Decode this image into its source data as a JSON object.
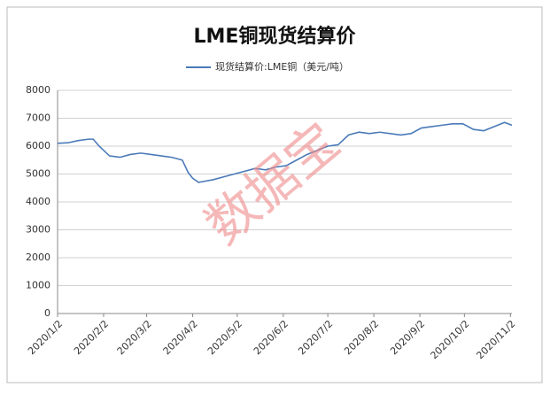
{
  "chart_data": {
    "type": "line",
    "title": "LME铜现货结算价",
    "watermark": "数据宝",
    "x": [
      0,
      7,
      14,
      21,
      24,
      28,
      35,
      42,
      49,
      56,
      63,
      70,
      77,
      84,
      88,
      91,
      95,
      100,
      105,
      112,
      119,
      126,
      133,
      140,
      147,
      154,
      161,
      168,
      175,
      182,
      189,
      196,
      203,
      210,
      217,
      224,
      231,
      238,
      245,
      252,
      259,
      266,
      273,
      280,
      287,
      294,
      301,
      306
    ],
    "series": [
      {
        "name": "现货结算价:LME铜（美元/吨）",
        "color": "#4a7ab8",
        "values": [
          6100,
          6120,
          6200,
          6250,
          6250,
          6000,
          5650,
          5600,
          5700,
          5750,
          5700,
          5650,
          5600,
          5500,
          5050,
          4850,
          4700,
          4750,
          4800,
          4900,
          5000,
          5100,
          5200,
          5150,
          5250,
          5300,
          5500,
          5700,
          5850,
          6000,
          6050,
          6400,
          6500,
          6450,
          6500,
          6450,
          6400,
          6450,
          6650,
          6700,
          6750,
          6800,
          6800,
          6600,
          6550,
          6700,
          6850,
          6750
        ]
      }
    ],
    "xlim": [
      0,
      306
    ],
    "xticks": [
      {
        "value": 0,
        "label": "2020/1/2"
      },
      {
        "value": 31,
        "label": "2020/2/2"
      },
      {
        "value": 60,
        "label": "2020/3/2"
      },
      {
        "value": 91,
        "label": "2020/4/2"
      },
      {
        "value": 121,
        "label": "2020/5/2"
      },
      {
        "value": 152,
        "label": "2020/6/2"
      },
      {
        "value": 182,
        "label": "2020/7/2"
      },
      {
        "value": 213,
        "label": "2020/8/2"
      },
      {
        "value": 244,
        "label": "2020/9/2"
      },
      {
        "value": 274,
        "label": "2020/10/2"
      },
      {
        "value": 305,
        "label": "2020/11/2"
      }
    ],
    "ylim": [
      0,
      8000
    ],
    "yticks": [
      0,
      1000,
      2000,
      3000,
      4000,
      5000,
      6000,
      7000,
      8000
    ],
    "grid": true,
    "legend": "top"
  }
}
